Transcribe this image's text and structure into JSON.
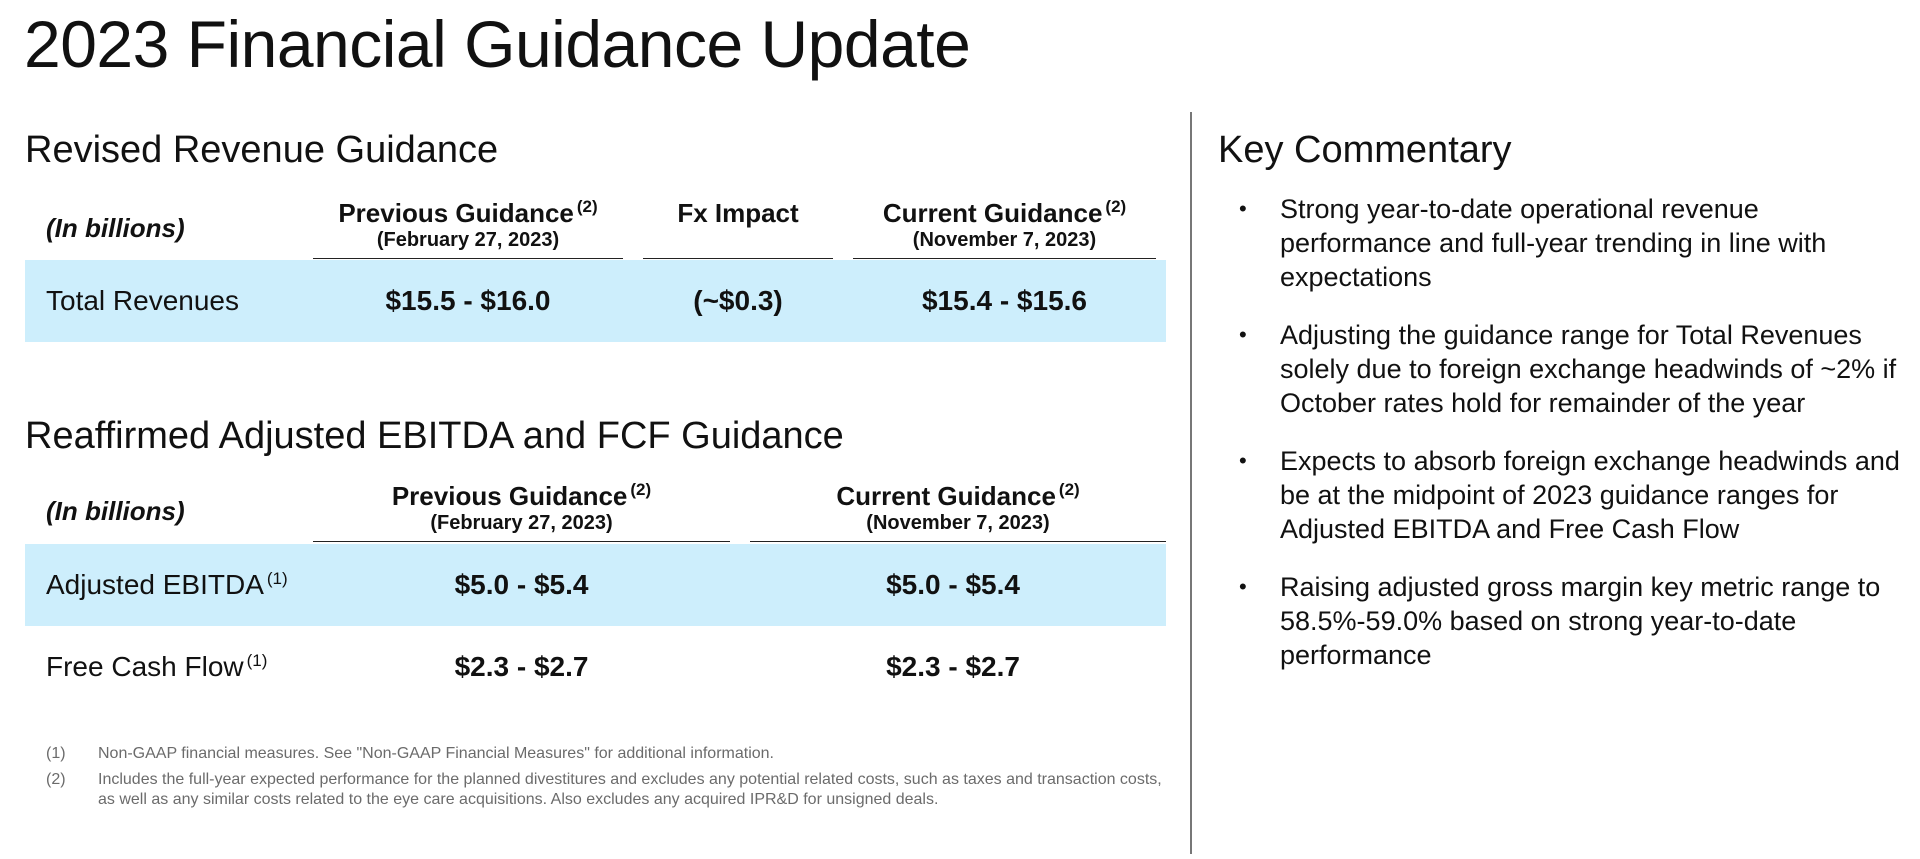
{
  "page": {
    "title": "2023 Financial Guidance Update"
  },
  "revenue": {
    "section_title": "Revised Revenue Guidance",
    "headers": {
      "units": "(In billions)",
      "previous": "Previous Guidance",
      "previous_fn": "(2)",
      "previous_date": "(February 27, 2023)",
      "fx": "Fx Impact",
      "current": "Current Guidance",
      "current_fn": "(2)",
      "current_date": "(November 7, 2023)"
    },
    "rows": [
      {
        "label": "Total Revenues",
        "previous": "$15.5 - $16.0",
        "fx": "(~$0.3)",
        "current": "$15.4 - $15.6"
      }
    ]
  },
  "ebitda": {
    "section_title": "Reaffirmed Adjusted EBITDA and FCF Guidance",
    "headers": {
      "units": "(In billions)",
      "previous": "Previous Guidance",
      "previous_fn": "(2)",
      "previous_date": "(February 27, 2023)",
      "current": "Current Guidance",
      "current_fn": "(2)",
      "current_date": "(November 7, 2023)"
    },
    "rows": [
      {
        "label": "Adjusted EBITDA",
        "label_fn": "(1)",
        "previous": "$5.0 - $5.4",
        "current": "$5.0 - $5.4"
      },
      {
        "label": "Free Cash Flow",
        "label_fn": "(1)",
        "previous": "$2.3 - $2.7",
        "current": "$2.3 - $2.7"
      }
    ]
  },
  "commentary": {
    "title": "Key Commentary",
    "bullet_char": "•",
    "bullets": [
      "Strong year-to-date operational revenue performance and full-year trending in line with expectations",
      "Adjusting the guidance range for Total Revenues solely due to foreign exchange headwinds of ~2% if October rates hold for remainder of the year",
      "Expects to absorb foreign exchange headwinds and be at the midpoint of 2023 guidance ranges for Adjusted EBITDA and Free Cash Flow",
      "Raising adjusted gross margin key metric range to 58.5%-59.0% based on strong year-to-date performance"
    ]
  },
  "footnotes": [
    {
      "num": "(1)",
      "text": "Non-GAAP financial measures. See \"Non-GAAP Financial Measures\" for additional information."
    },
    {
      "num": "(2)",
      "text": "Includes the full-year expected performance for the planned divestitures and excludes any potential related costs, such as taxes and transaction costs, as well as any similar costs related to the eye care acquisitions. Also excludes any acquired IPR&D for unsigned deals."
    }
  ],
  "colors": {
    "row_highlight": "#cdeefc",
    "text": "#111111",
    "footnote_text": "#6b6b6b",
    "divider": "#777777"
  }
}
